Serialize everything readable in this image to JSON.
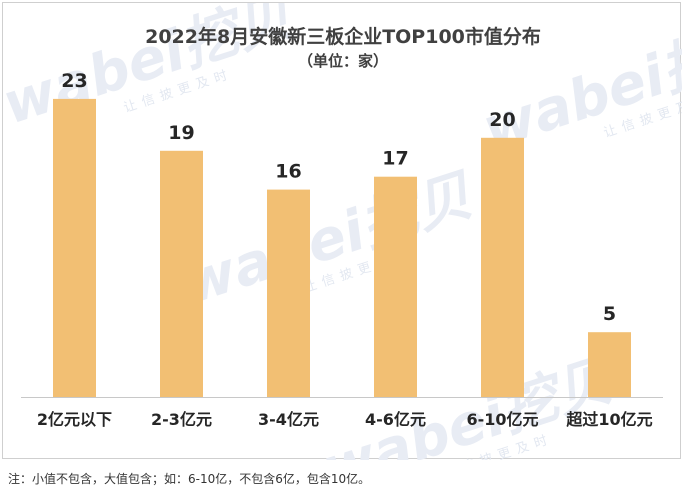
{
  "chart_data": {
    "type": "bar",
    "title": "2022年8月安徽新三板企业TOP100市值分布",
    "subtitle": "（单位：家）",
    "categories": [
      "2亿元以下",
      "2-3亿元",
      "3-4亿元",
      "4-6亿元",
      "6-10亿元",
      "超过10亿元"
    ],
    "values": [
      23,
      19,
      16,
      17,
      20,
      5
    ],
    "ylim": [
      0,
      25
    ],
    "grid": false,
    "bar_color": "#f2bf73",
    "axis_color": "#c8c8c8"
  },
  "watermark": {
    "brand": "wabei",
    "logo_text": "挖贝",
    "slogan": "让信披更及时"
  },
  "footnote": "注：小值不包含，大值包含；如：6-10亿，不包含6亿，包含10亿。"
}
